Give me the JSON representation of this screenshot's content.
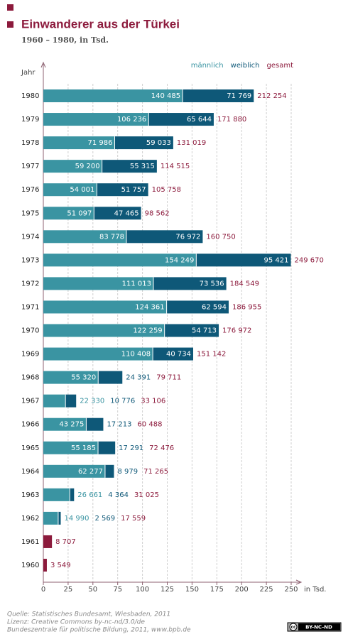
{
  "chart_data": {
    "type": "bar",
    "title": "Einwanderer aus der Türkei",
    "subtitle": "1960 – 1980, in Tsd.",
    "y_axis_label": "Jahr",
    "x_axis_label": "in Tsd.",
    "categories": [
      "1980",
      "1979",
      "1978",
      "1977",
      "1976",
      "1975",
      "1974",
      "1973",
      "1972",
      "1971",
      "1970",
      "1969",
      "1968",
      "1967",
      "1966",
      "1965",
      "1964",
      "1963",
      "1962",
      "1961",
      "1960"
    ],
    "series": [
      {
        "name": "männlich",
        "color": "#3a94a2",
        "values": [
          140.485,
          106.236,
          71.986,
          59.2,
          54.001,
          51.097,
          83.778,
          154.249,
          111.013,
          124.361,
          122.259,
          110.408,
          55.32,
          22.33,
          43.275,
          55.185,
          62.277,
          26.661,
          14.99,
          null,
          null
        ],
        "value_labels": [
          "140 485",
          "106 236",
          "71 986",
          "59 200",
          "54 001",
          "51 097",
          "83 778",
          "154 249",
          "111 013",
          "124 361",
          "122 259",
          "110 408",
          "55 320",
          "22 330",
          "43 275",
          "55 185",
          "62 277",
          "26 661",
          "14 990",
          null,
          null
        ]
      },
      {
        "name": "weiblich",
        "color": "#0e5878",
        "values": [
          71.769,
          65.644,
          59.033,
          55.315,
          51.757,
          47.465,
          76.972,
          95.421,
          73.536,
          62.594,
          54.713,
          40.734,
          24.391,
          10.776,
          17.213,
          17.291,
          8.979,
          4.364,
          2.569,
          null,
          null
        ],
        "value_labels": [
          "71 769",
          "65 644",
          "59 033",
          "55 315",
          "51 757",
          "47 465",
          "76 972",
          "95 421",
          "73 536",
          "62 594",
          "54 713",
          "40 734",
          "24 391",
          "10 776",
          "17 213",
          "17 291",
          "8 979",
          "4 364",
          "2 569",
          null,
          null
        ]
      },
      {
        "name": "gesamt",
        "color": "#8c1a3c",
        "values": [
          212.254,
          171.88,
          131.019,
          114.515,
          105.758,
          98.562,
          160.75,
          249.67,
          184.549,
          186.955,
          176.972,
          151.142,
          79.711,
          33.106,
          60.488,
          72.476,
          71.265,
          31.025,
          17.559,
          8.707,
          3.549
        ],
        "value_labels": [
          "212 254",
          "171 880",
          "131 019",
          "114 515",
          "105 758",
          "98 562",
          "160 750",
          "249 670",
          "184 549",
          "186 955",
          "176 972",
          "151 142",
          "79 711",
          "33 106",
          "60 488",
          "72 476",
          "71 265",
          "31 025",
          "17 559",
          "8 707",
          "3 549"
        ]
      }
    ],
    "xlim": [
      0,
      250
    ],
    "xticks": [
      0,
      25,
      50,
      75,
      100,
      125,
      150,
      175,
      200,
      225,
      250
    ],
    "grid": true,
    "legend": "top",
    "source": [
      "Quelle: Statistisches Bundesamt, Wiesbaden, 2011",
      "Lizenz: Creative Commons by-nc-nd/3.0/de",
      "Bundeszentrale für politische Bildung, 2011, www.bpb.de"
    ],
    "license_badge": "BY-NC-ND"
  }
}
